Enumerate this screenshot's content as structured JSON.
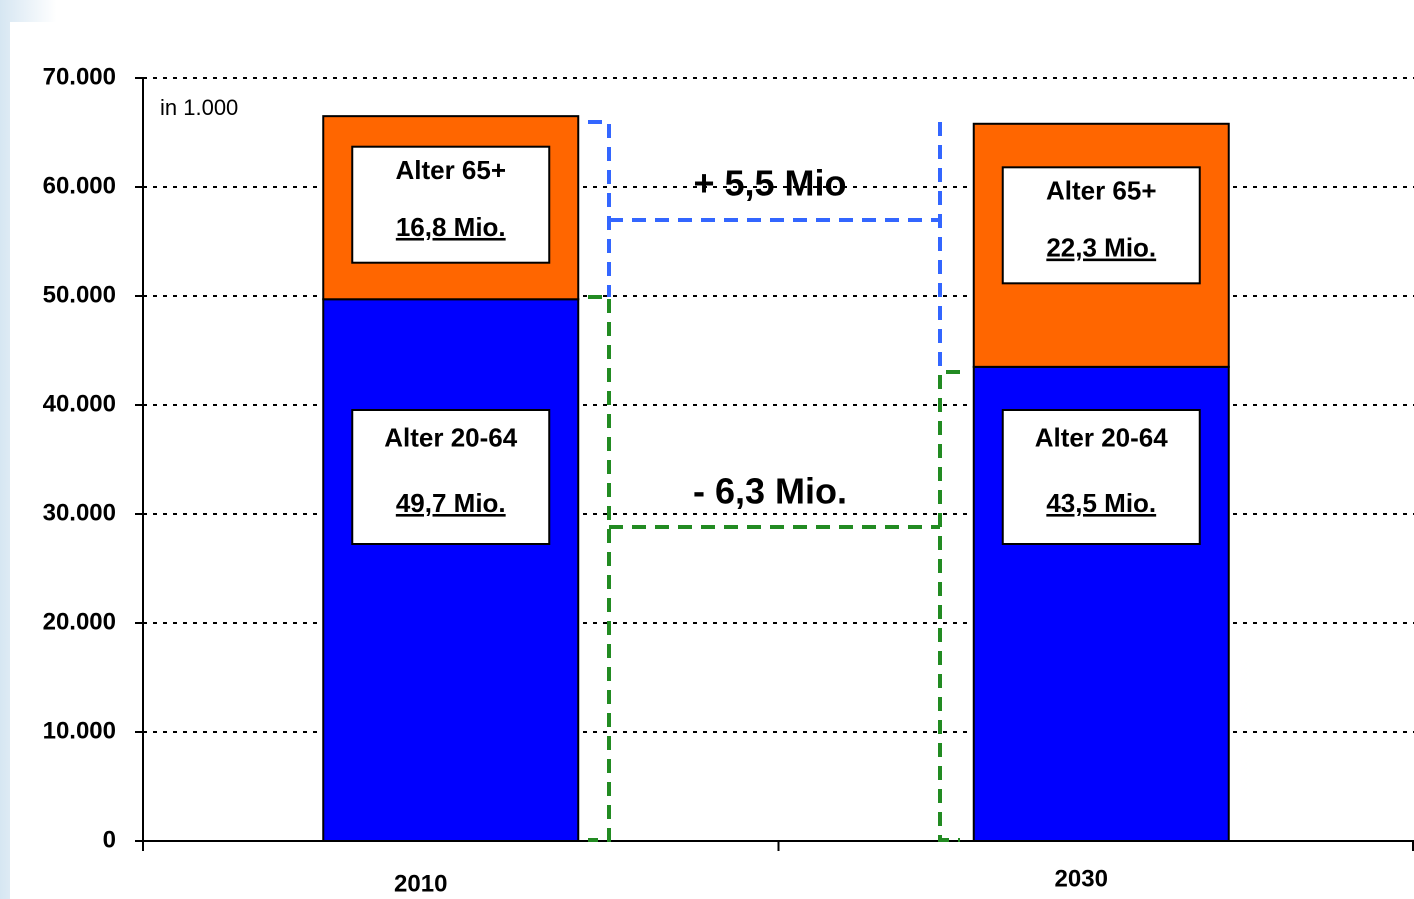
{
  "chart_data": {
    "type": "stacked_bar",
    "unit_note": "in 1.000",
    "categories": [
      "2010",
      "2030"
    ],
    "series": [
      {
        "name": "Alter 20-64",
        "color": "#0000ff",
        "values": [
          49700,
          43500
        ],
        "value_labels": [
          "49,7 Mio.",
          "43,5 Mio."
        ]
      },
      {
        "name": "Alter 65+",
        "color": "#ff6600",
        "values": [
          16800,
          22300
        ],
        "value_labels": [
          "16,8 Mio.",
          "22,3 Mio."
        ]
      }
    ],
    "annotations": [
      "+ 5,5 Mio",
      "- 6,3 Mio."
    ],
    "ylim": [
      0,
      70000
    ],
    "yticks": [
      0,
      {
        "value": 10000,
        "label": "10.000"
      },
      {
        "value": 20000,
        "label": "20.000"
      },
      {
        "value": 30000,
        "label": "30.000"
      },
      {
        "value": 40000,
        "label": "40.000"
      },
      {
        "value": 50000,
        "label": "50.000"
      },
      {
        "value": 60000,
        "label": "60.000"
      },
      {
        "value": 70000,
        "label": "70.000"
      }
    ],
    "grid": true
  }
}
